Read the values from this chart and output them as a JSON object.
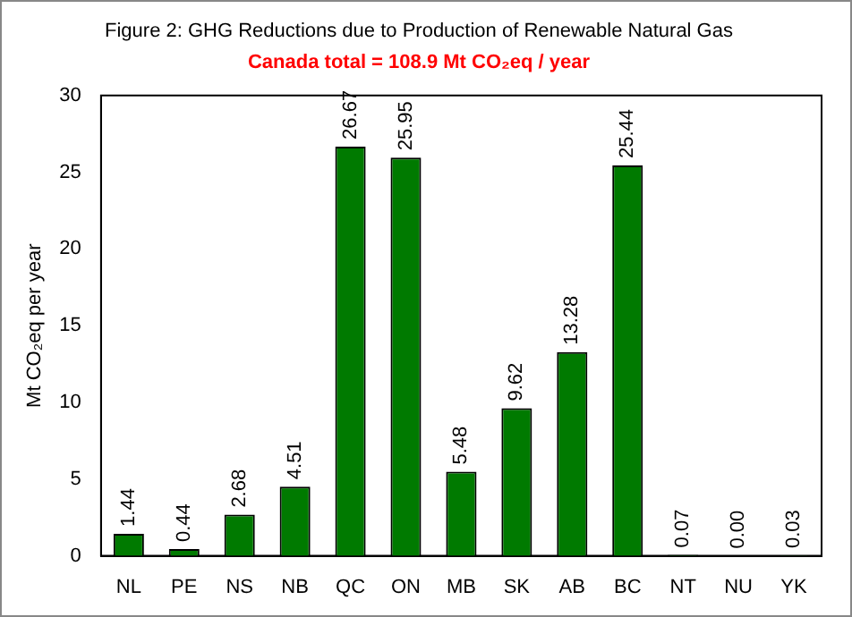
{
  "chart_data": {
    "type": "bar",
    "title": "Figure 2: GHG Reductions due to Production of Renewable Natural Gas",
    "subtitle": "Canada total = 108.9 Mt CO₂eq / year",
    "ylabel": "Mt CO₂eq per year",
    "categories": [
      "NL",
      "PE",
      "NS",
      "NB",
      "QC",
      "ON",
      "MB",
      "SK",
      "AB",
      "BC",
      "NT",
      "NU",
      "YK"
    ],
    "values": [
      1.44,
      0.44,
      2.68,
      4.51,
      26.67,
      25.95,
      5.48,
      9.62,
      13.28,
      25.44,
      0.07,
      0.0,
      0.03
    ],
    "value_labels": [
      "1.44",
      "0.44",
      "2.68",
      "4.51",
      "26.67",
      "25.95",
      "5.48",
      "9.62",
      "13.28",
      "25.44",
      "0.07",
      "0.00",
      "0.03"
    ],
    "color": "#007a00",
    "ylim": [
      0,
      30
    ],
    "yticks": [
      0,
      5,
      10,
      15,
      20,
      25,
      30
    ],
    "grid": false,
    "legend": false
  }
}
